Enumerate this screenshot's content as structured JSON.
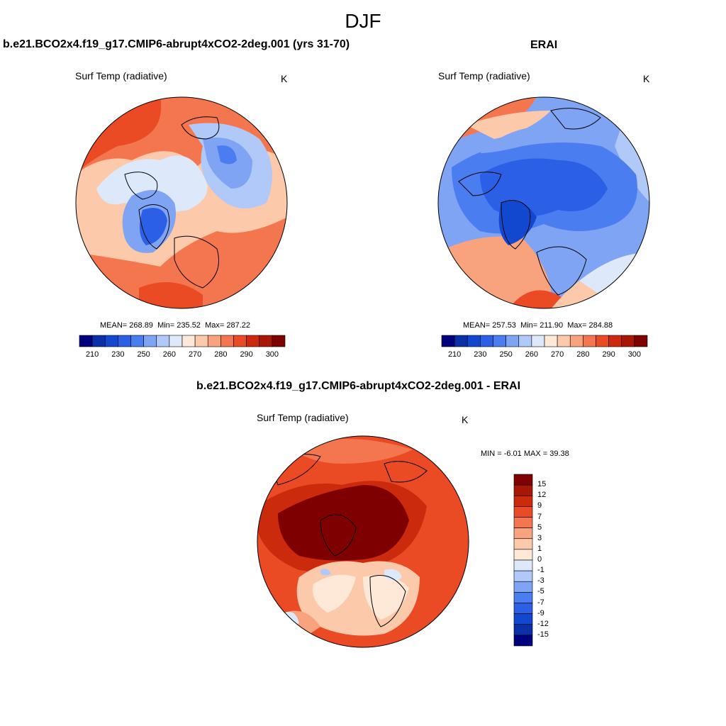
{
  "figure": {
    "season": "DJF"
  },
  "panels": [
    {
      "id": "model",
      "title": "b.e21.BCO2x4.f19_g17.CMIP6-abrupt4xCO2-2deg.001 (yrs 31-70)",
      "variable": "Surf Temp (radiative)",
      "units": "K",
      "stats": {
        "mean_label": "MEAN=",
        "mean": "268.89",
        "min_label": "Min=",
        "min": "235.52",
        "max_label": "Max=",
        "max": "287.22"
      }
    },
    {
      "id": "obs",
      "title": "ERAI",
      "variable": "Surf Temp (radiative)",
      "units": "K",
      "stats": {
        "mean_label": "MEAN=",
        "mean": "257.53",
        "min_label": "Min=",
        "min": "211.90",
        "max_label": "Max=",
        "max": "284.88"
      }
    },
    {
      "id": "diff",
      "title": "b.e21.BCO2x4.f19_g17.CMIP6-abrupt4xCO2-2deg.001 - ERAI",
      "variable": "Surf Temp (radiative)",
      "units": "K",
      "stats": {
        "min_label": "MIN =",
        "min": "-6.01",
        "max_label": "MAX =",
        "max": "39.38"
      }
    }
  ],
  "abs_colorbar": {
    "tick_labels": [
      "210",
      "230",
      "250",
      "260",
      "270",
      "280",
      "290",
      "300"
    ],
    "colors": [
      "#00007f",
      "#0a2fa6",
      "#1247d0",
      "#2a5fe6",
      "#4a7df0",
      "#7fa4f4",
      "#b0c9f8",
      "#dde9fb",
      "#fee9d8",
      "#fcc9aa",
      "#f9a27e",
      "#f4764f",
      "#ea4a24",
      "#cc2a0c",
      "#a81705",
      "#7f0000"
    ]
  },
  "diff_colorbar": {
    "tick_labels": [
      "15",
      "12",
      "9",
      "7",
      "5",
      "3",
      "1",
      "0",
      "-1",
      "-3",
      "-5",
      "-7",
      "-9",
      "-12",
      "-15"
    ],
    "colors": [
      "#7f0000",
      "#a81705",
      "#cc2a0c",
      "#ea4a24",
      "#f4764f",
      "#f9a27e",
      "#fcc9aa",
      "#fee9d8",
      "#dde9fb",
      "#b0c9f8",
      "#7fa4f4",
      "#4a7df0",
      "#2a5fe6",
      "#1247d0",
      "#0a2fa6",
      "#00007f"
    ]
  },
  "colors": {
    "deep_red": "#7f0000",
    "deep_blue": "#00007f",
    "coast": "#000000"
  }
}
